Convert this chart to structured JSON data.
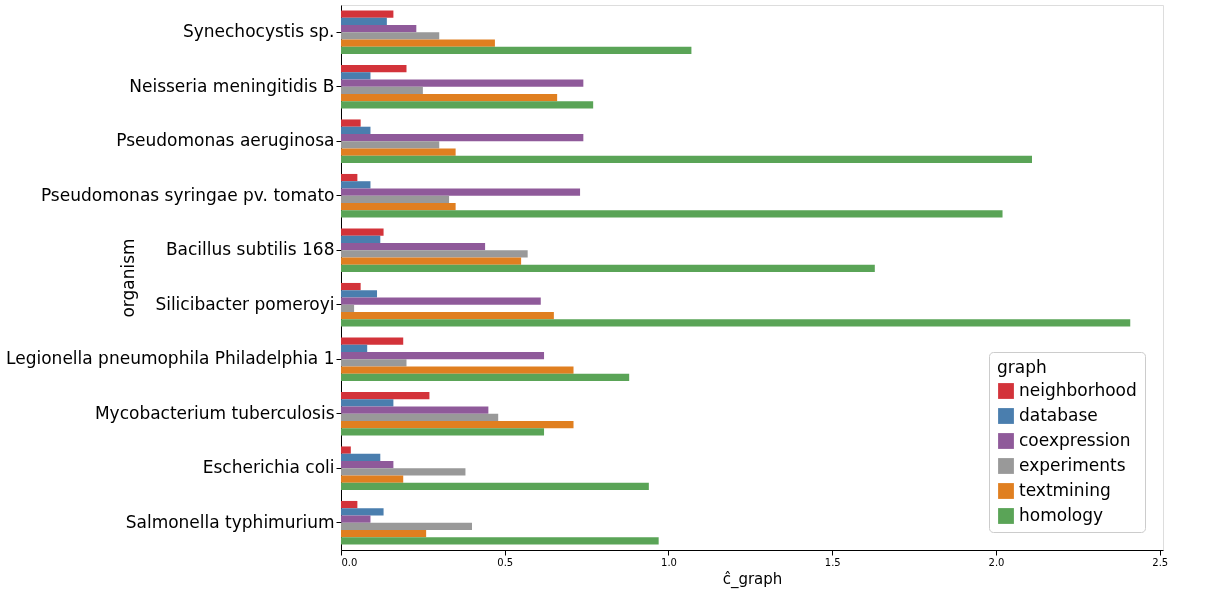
{
  "chart_data": {
    "type": "bar",
    "orientation": "horizontal",
    "xlabel": "ĉ_graph",
    "ylabel": "organism",
    "legend_title": "graph",
    "legend": "bottom right",
    "grid": false,
    "categories": [
      "Synechocystis sp.",
      "Neisseria meningitidis B",
      "Pseudomonas aeruginosa",
      "Pseudomonas syringae pv. tomato",
      "Bacillus subtilis 168",
      "Silicibacter pomeroyi",
      "Legionella pneumophila Philadelphia 1",
      "Mycobacterium tuberculosis",
      "Escherichia coli",
      "Salmonella typhimurium"
    ],
    "xlim": [
      0,
      2.51
    ],
    "xticks": [
      {
        "value": 0,
        "label": "0.0"
      },
      {
        "value": 0.5,
        "label": "0.5"
      },
      {
        "value": 1,
        "label": "1.0"
      },
      {
        "value": 1.5,
        "label": "1.5"
      },
      {
        "value": 2,
        "label": "2.0"
      },
      {
        "value": 2.5,
        "label": "2.5"
      }
    ],
    "series": [
      {
        "name": "neighborhood",
        "color": "#d3333a",
        "values": [
          0.16,
          0.2,
          0.06,
          0.05,
          0.13,
          0.06,
          0.19,
          0.27,
          0.03,
          0.05
        ]
      },
      {
        "name": "database",
        "color": "#4a7eae",
        "values": [
          0.14,
          0.09,
          0.09,
          0.09,
          0.12,
          0.11,
          0.08,
          0.16,
          0.12,
          0.13
        ]
      },
      {
        "name": "coexpression",
        "color": "#8f5a9a",
        "values": [
          0.23,
          0.74,
          0.74,
          0.73,
          0.44,
          0.61,
          0.62,
          0.45,
          0.16,
          0.09
        ]
      },
      {
        "name": "experiments",
        "color": "#999999",
        "values": [
          0.3,
          0.25,
          0.3,
          0.33,
          0.57,
          0.04,
          0.2,
          0.48,
          0.38,
          0.4
        ]
      },
      {
        "name": "textmining",
        "color": "#e07f20",
        "values": [
          0.47,
          0.66,
          0.35,
          0.35,
          0.55,
          0.65,
          0.71,
          0.71,
          0.19,
          0.26
        ]
      },
      {
        "name": "homology",
        "color": "#5aa457",
        "values": [
          1.07,
          0.77,
          2.11,
          2.02,
          1.63,
          2.41,
          0.88,
          0.62,
          0.94,
          0.97
        ]
      }
    ]
  }
}
